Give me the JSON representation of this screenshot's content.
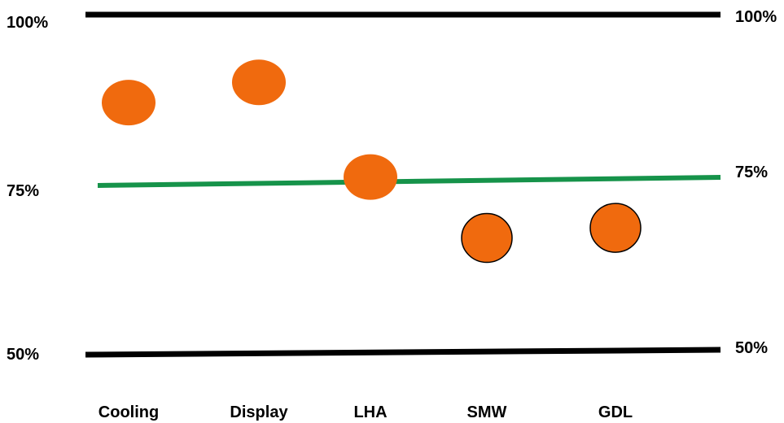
{
  "chart_data": {
    "type": "scatter",
    "categories": [
      "Cooling",
      "Display",
      "LHA",
      "SMW",
      "GDL"
    ],
    "values": [
      87,
      90,
      76,
      67,
      68.5
    ],
    "outlined": [
      false,
      false,
      false,
      true,
      true
    ],
    "ylim": [
      50,
      100
    ],
    "reference_lines": [
      {
        "value": 100,
        "left_label": "100%",
        "right_label": "100%",
        "color": "#000000"
      },
      {
        "value": 75,
        "left_label": "75%",
        "right_label": "75%",
        "color": "#16934a"
      },
      {
        "value": 50,
        "left_label": "50%",
        "right_label": "50%",
        "color": "#000000"
      }
    ],
    "marker_color": "#f06a0e",
    "marker_outline_color": "#000000",
    "grid": false,
    "legend": "none"
  }
}
